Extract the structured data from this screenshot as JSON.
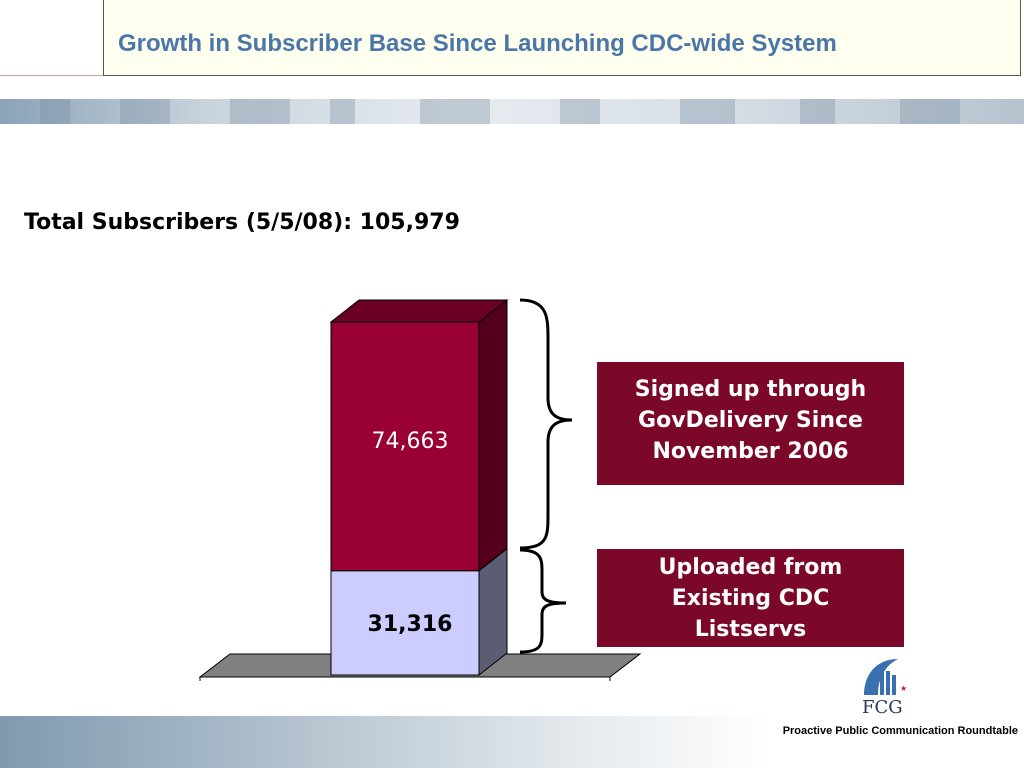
{
  "slide": {
    "title": "Growth in Subscriber Base Since Launching CDC-wide System",
    "subtitle": "Total Subscribers (5/5/08): 105,979",
    "footer": "Proactive Public Communication Roundtable",
    "logo_text": "FCG"
  },
  "callouts": {
    "top": [
      "Signed up through",
      "GovDelivery Since",
      "November 2006"
    ],
    "bottom": [
      "Uploaded from",
      "Existing CDC",
      "Listservs"
    ]
  },
  "colors": {
    "title": "#4a76a8",
    "top_segment": "#990033",
    "bottom_segment": "#ccccff",
    "callout_bg": "#7b0828"
  },
  "chart_data": {
    "type": "bar",
    "stacked": true,
    "three_d": true,
    "categories": [
      ""
    ],
    "series": [
      {
        "values": [
          31316
        ],
        "label": "31,316",
        "color": "#ccccff"
      },
      {
        "values": [
          74663
        ],
        "label": "74,663",
        "color": "#990033"
      }
    ],
    "total": 105979,
    "xlabel": "",
    "ylabel": ""
  }
}
